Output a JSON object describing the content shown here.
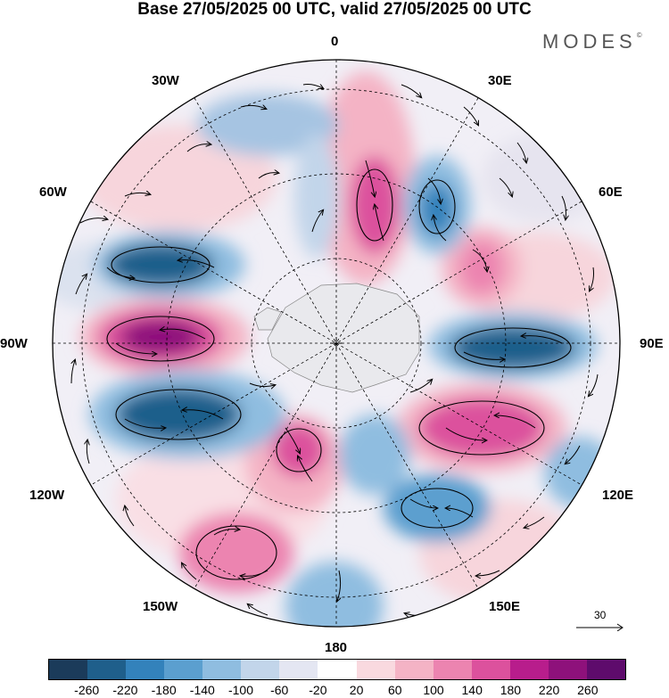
{
  "title": "Base 27/05/2025 00 UTC, valid 27/05/2025 00 UTC",
  "logo": {
    "text": "MODES",
    "mark": "©"
  },
  "longitude_labels": {
    "lon_0": "0",
    "lon_30e": "30E",
    "lon_60e": "60E",
    "lon_90e": "90E",
    "lon_120e": "120E",
    "lon_150e": "150E",
    "lon_180": "180",
    "lon_150w": "150W",
    "lon_120w": "120W",
    "lon_90w": "90W",
    "lon_60w": "60W",
    "lon_30w": "30W"
  },
  "reference_vector": {
    "value": "30"
  },
  "colorbar": {
    "colors": [
      "#1b3b5a",
      "#1f5f8b",
      "#3382bb",
      "#5b9fcf",
      "#8fbde0",
      "#c2d5ea",
      "#e4e6f2",
      "#ffffff",
      "#f9d9df",
      "#f4b3c5",
      "#ec84b0",
      "#dc519d",
      "#b81d8c",
      "#8e117b",
      "#5e0b6c"
    ],
    "labels": [
      "-260",
      "-220",
      "-180",
      "-140",
      "-100",
      "-60",
      "-20",
      "20",
      "60",
      "100",
      "140",
      "180",
      "220",
      "260"
    ]
  }
}
